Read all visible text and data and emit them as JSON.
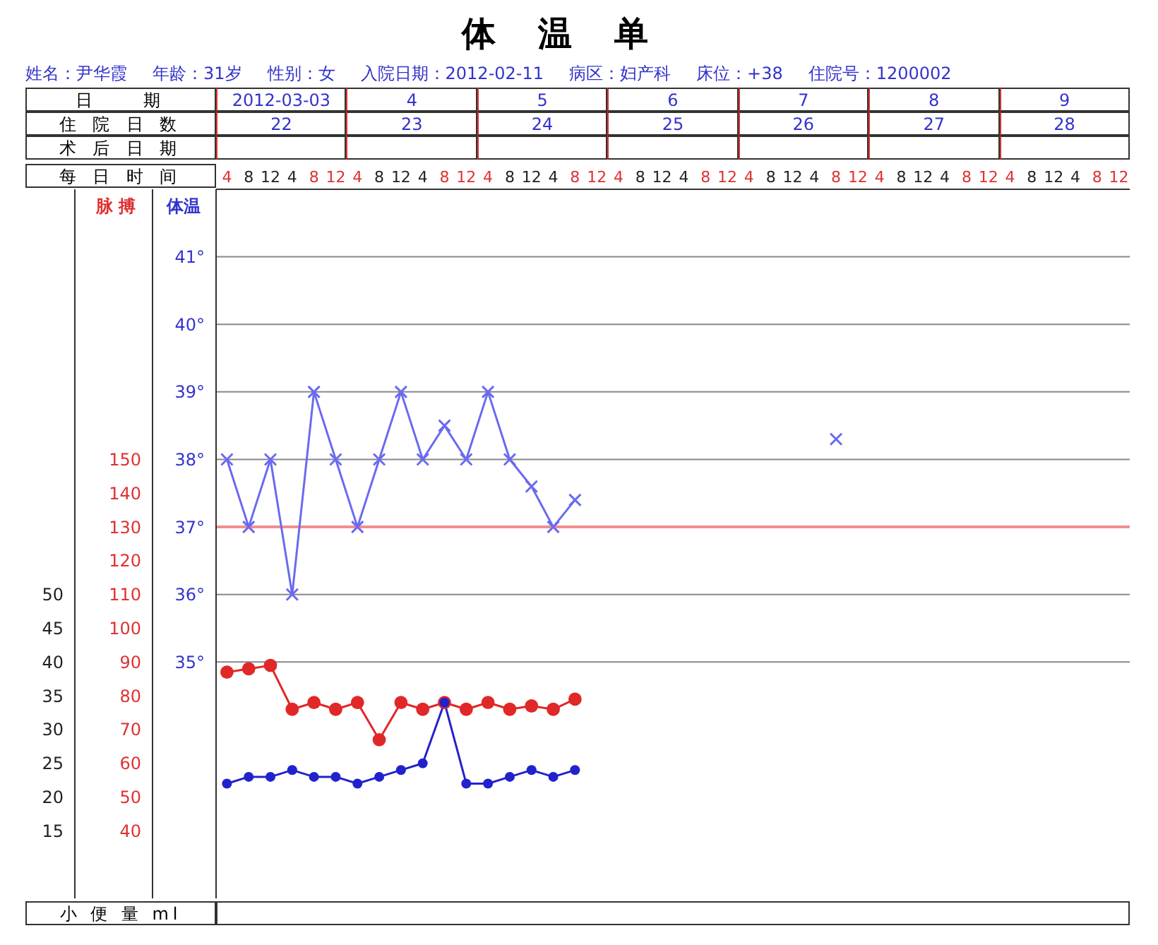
{
  "chart_data": {
    "type": "line",
    "title": "体温单",
    "categories": [
      "4",
      "8",
      "12",
      "4",
      "8",
      "12",
      "4",
      "8",
      "12",
      "4",
      "8",
      "12",
      "4",
      "8",
      "12",
      "4",
      "8",
      "12",
      "4",
      "8",
      "12",
      "4",
      "8",
      "12",
      "4",
      "8",
      "12",
      "4",
      "8",
      "12",
      "4",
      "8",
      "12",
      "4",
      "8",
      "12",
      "4",
      "8",
      "12",
      "4",
      "8",
      "12"
    ],
    "ylabel": "体温",
    "y2label": "脉 搏",
    "annotations": [
      "姓名：尹华霞",
      "年龄：31岁",
      "性别：女",
      "入院日期：2012-02-11",
      "病区：妇产科",
      "床位：+38",
      "住院号：1200002",
      "日　　期",
      "2012-03-03",
      "4",
      "5",
      "6",
      "7",
      "8",
      "9",
      "住 院 日 数",
      "22",
      "23",
      "24",
      "25",
      "26",
      "27",
      "28",
      "术 后 日 期",
      "每 日 时 间",
      "小 便 量 ml"
    ],
    "series": [
      {
        "axis": "y",
        "color": "#6a6af0",
        "marker": "cross",
        "values": [
          38,
          37,
          38,
          36,
          39,
          38,
          37,
          38,
          39,
          38,
          38.5,
          38,
          39,
          38,
          37.6,
          37,
          37.4,
          null,
          null,
          null,
          null,
          null,
          null,
          null,
          null,
          null,
          null,
          null,
          38.3,
          null,
          null,
          null,
          null,
          null,
          null,
          null,
          null,
          null,
          null,
          null,
          null,
          null
        ]
      },
      {
        "axis": "y2",
        "color": "#e02828",
        "marker": "circle",
        "values": [
          87,
          88,
          89,
          76,
          78,
          76,
          78,
          67,
          78,
          76,
          78,
          76,
          78,
          76,
          77,
          76,
          79,
          null,
          null,
          null,
          null,
          null,
          null,
          null,
          null,
          null,
          null,
          null,
          null,
          null,
          null,
          null,
          null,
          null,
          null,
          null,
          null,
          null,
          null,
          null,
          null,
          null
        ]
      },
      {
        "axis": "y3",
        "color": "#2222cc",
        "marker": "circle",
        "values": [
          22,
          23,
          23,
          24,
          23,
          23,
          22,
          23,
          24,
          25,
          34,
          22,
          22,
          23,
          24,
          23,
          24,
          null,
          null,
          null,
          null,
          null,
          null,
          null,
          null,
          null,
          null,
          null,
          null,
          null,
          null,
          null,
          null,
          null,
          null,
          null,
          null,
          null,
          null,
          null,
          null,
          null
        ]
      }
    ],
    "ylim": [
      31.5,
      42
    ],
    "yticks": [
      {
        "value": 35,
        "label": "35°"
      },
      {
        "value": 36,
        "label": "36°"
      },
      {
        "value": 37,
        "label": "37°"
      },
      {
        "value": 38,
        "label": "38°"
      },
      {
        "value": 39,
        "label": "39°"
      },
      {
        "value": 40,
        "label": "40°"
      },
      {
        "value": 41,
        "label": "41°"
      }
    ],
    "y2lim": [
      20,
      230
    ],
    "y2ticks": [
      40,
      50,
      60,
      70,
      80,
      90,
      100,
      110,
      120,
      130,
      140,
      150
    ],
    "y3lim": [
      5,
      110
    ],
    "y3ticks": [
      15,
      20,
      25,
      30,
      35,
      40,
      45,
      50
    ],
    "ref_lines": [
      {
        "axis": "y",
        "value": 37,
        "color": "#f09090"
      }
    ],
    "grid": "y"
  }
}
